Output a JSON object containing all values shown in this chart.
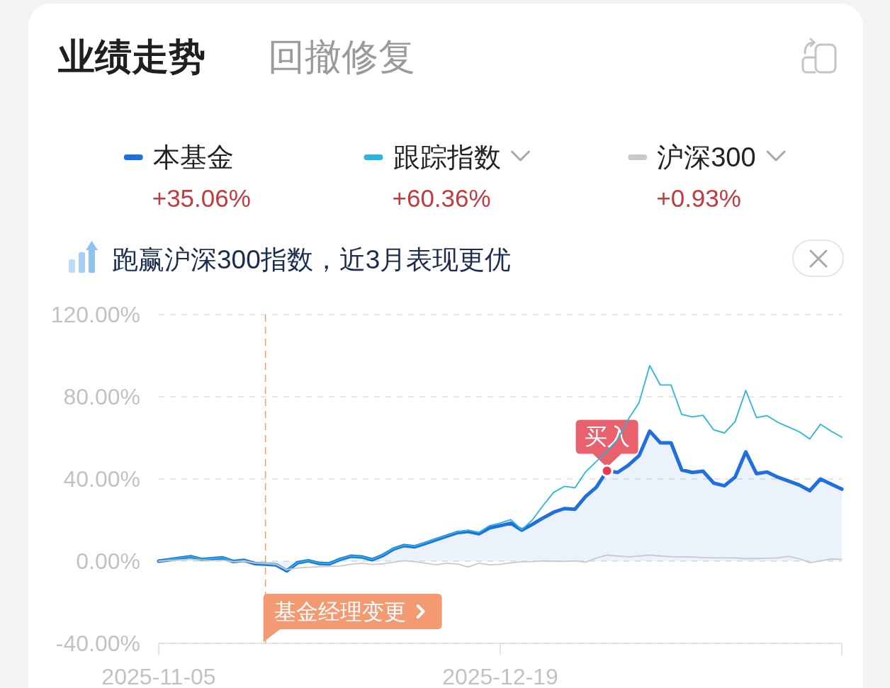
{
  "chart_data": {
    "type": "line",
    "title": "业绩走势",
    "subtitle": "跑赢沪深300指数，近3月表现更优",
    "categories": [
      "2025-11-05",
      null,
      null,
      null,
      null,
      null,
      null,
      null,
      null,
      null,
      null,
      null,
      null,
      null,
      null,
      null,
      null,
      null,
      null,
      null,
      null,
      null,
      null,
      null,
      null,
      null,
      null,
      null,
      null,
      null,
      null,
      null,
      "2025-12-19",
      null,
      null,
      null,
      null,
      null,
      null,
      null,
      null,
      null,
      null,
      null,
      null,
      null,
      null,
      null,
      null,
      null,
      null,
      null,
      null,
      null,
      null,
      null,
      null,
      null,
      null,
      null,
      null,
      null,
      null,
      null,
      null
    ],
    "series": [
      {
        "name": "本基金",
        "type": "area",
        "color": "#1f6fde",
        "values": [
          0.0,
          0.7,
          1.5,
          2.2,
          0.8,
          1.2,
          1.6,
          -0.2,
          0.4,
          -1.2,
          -1.5,
          -1.8,
          -4.7,
          -0.8,
          0.2,
          -1.1,
          -1.3,
          0.9,
          2.4,
          2.1,
          0.7,
          2.8,
          5.9,
          7.6,
          7.0,
          8.7,
          10.5,
          12.2,
          13.9,
          14.5,
          13.3,
          16.2,
          17.3,
          18.5,
          15.1,
          17.9,
          21.0,
          23.8,
          25.6,
          25.3,
          31.5,
          36.0,
          44.0,
          43.2,
          46.7,
          51.3,
          63.3,
          57.6,
          57.6,
          44.4,
          43.2,
          43.8,
          38.0,
          36.7,
          40.9,
          53.2,
          42.6,
          43.4,
          40.9,
          39.0,
          37.1,
          34.3,
          40.0,
          37.5,
          35.06
        ]
      },
      {
        "name": "跟踪指数",
        "color": "#29b6dc",
        "values": [
          0.0,
          0.8,
          1.6,
          2.3,
          0.9,
          1.3,
          1.7,
          -0.1,
          0.5,
          -1.1,
          -1.4,
          -1.7,
          -4.5,
          -0.7,
          0.3,
          -1.0,
          -1.2,
          1.0,
          2.5,
          2.2,
          0.8,
          3.0,
          6.1,
          7.8,
          7.3,
          9.0,
          10.8,
          12.5,
          14.3,
          15.0,
          14.0,
          17.3,
          18.6,
          20.2,
          15.3,
          20.0,
          27.0,
          33.5,
          36.4,
          35.7,
          43.5,
          48.5,
          53.6,
          59.3,
          69.1,
          77.1,
          95.2,
          85.7,
          85.7,
          71.4,
          70.2,
          71.0,
          63.9,
          62.4,
          67.9,
          83.1,
          69.9,
          70.8,
          67.6,
          65.3,
          63.0,
          59.5,
          66.6,
          63.3,
          60.36
        ]
      },
      {
        "name": "沪深300",
        "color": "#c9c9c9",
        "values": [
          0.0,
          0.3,
          0.6,
          1.0,
          0.5,
          0.3,
          0.5,
          -0.3,
          0.0,
          -0.8,
          -1.0,
          -1.5,
          -4.2,
          -3.3,
          -3.0,
          -2.7,
          -2.5,
          -2.4,
          -1.5,
          -1.0,
          -1.6,
          -1.3,
          -0.5,
          0.2,
          -0.2,
          -1.0,
          -1.8,
          -1.0,
          -1.4,
          -2.8,
          -1.0,
          -1.8,
          -1.5,
          -0.8,
          -0.3,
          -0.2,
          0.1,
          0.0,
          -0.1,
          0.1,
          -0.5,
          1.5,
          3.0,
          2.5,
          2.1,
          2.5,
          3.0,
          2.5,
          2.2,
          2.1,
          2.0,
          1.8,
          1.6,
          1.6,
          1.6,
          1.2,
          1.3,
          1.4,
          1.6,
          2.4,
          1.2,
          -0.7,
          0.1,
          1.1,
          0.93
        ]
      },
      {
        "type": "scatter",
        "color": "#e53b4a",
        "marker": "circle",
        "values": [
          null,
          null,
          null,
          null,
          null,
          null,
          null,
          null,
          null,
          null,
          null,
          null,
          null,
          null,
          null,
          null,
          null,
          null,
          null,
          null,
          null,
          null,
          null,
          null,
          null,
          null,
          null,
          null,
          null,
          null,
          null,
          null,
          null,
          null,
          null,
          null,
          null,
          null,
          null,
          null,
          null,
          null,
          44.0,
          null,
          null,
          null,
          null,
          null,
          null,
          null,
          null,
          null,
          null,
          null,
          null,
          null,
          null,
          null,
          null,
          null,
          null,
          null,
          null,
          null,
          null
        ]
      }
    ],
    "ylim": [
      -40,
      120
    ],
    "yticks": [
      {
        "value": -40,
        "label": "-40.00%"
      },
      {
        "value": 0,
        "label": "0.00%"
      },
      {
        "value": 40,
        "label": "40.00%"
      },
      {
        "value": 80,
        "label": "80.00%"
      },
      {
        "value": 120,
        "label": "120.00%"
      }
    ],
    "grid": "y",
    "legend": "top",
    "annotations": [
      "回撤修复",
      "+35.06%",
      "+60.36%",
      "+0.93%",
      "基金经理变更",
      {
        "text": "买入",
        "y": 44.0
      }
    ]
  }
}
